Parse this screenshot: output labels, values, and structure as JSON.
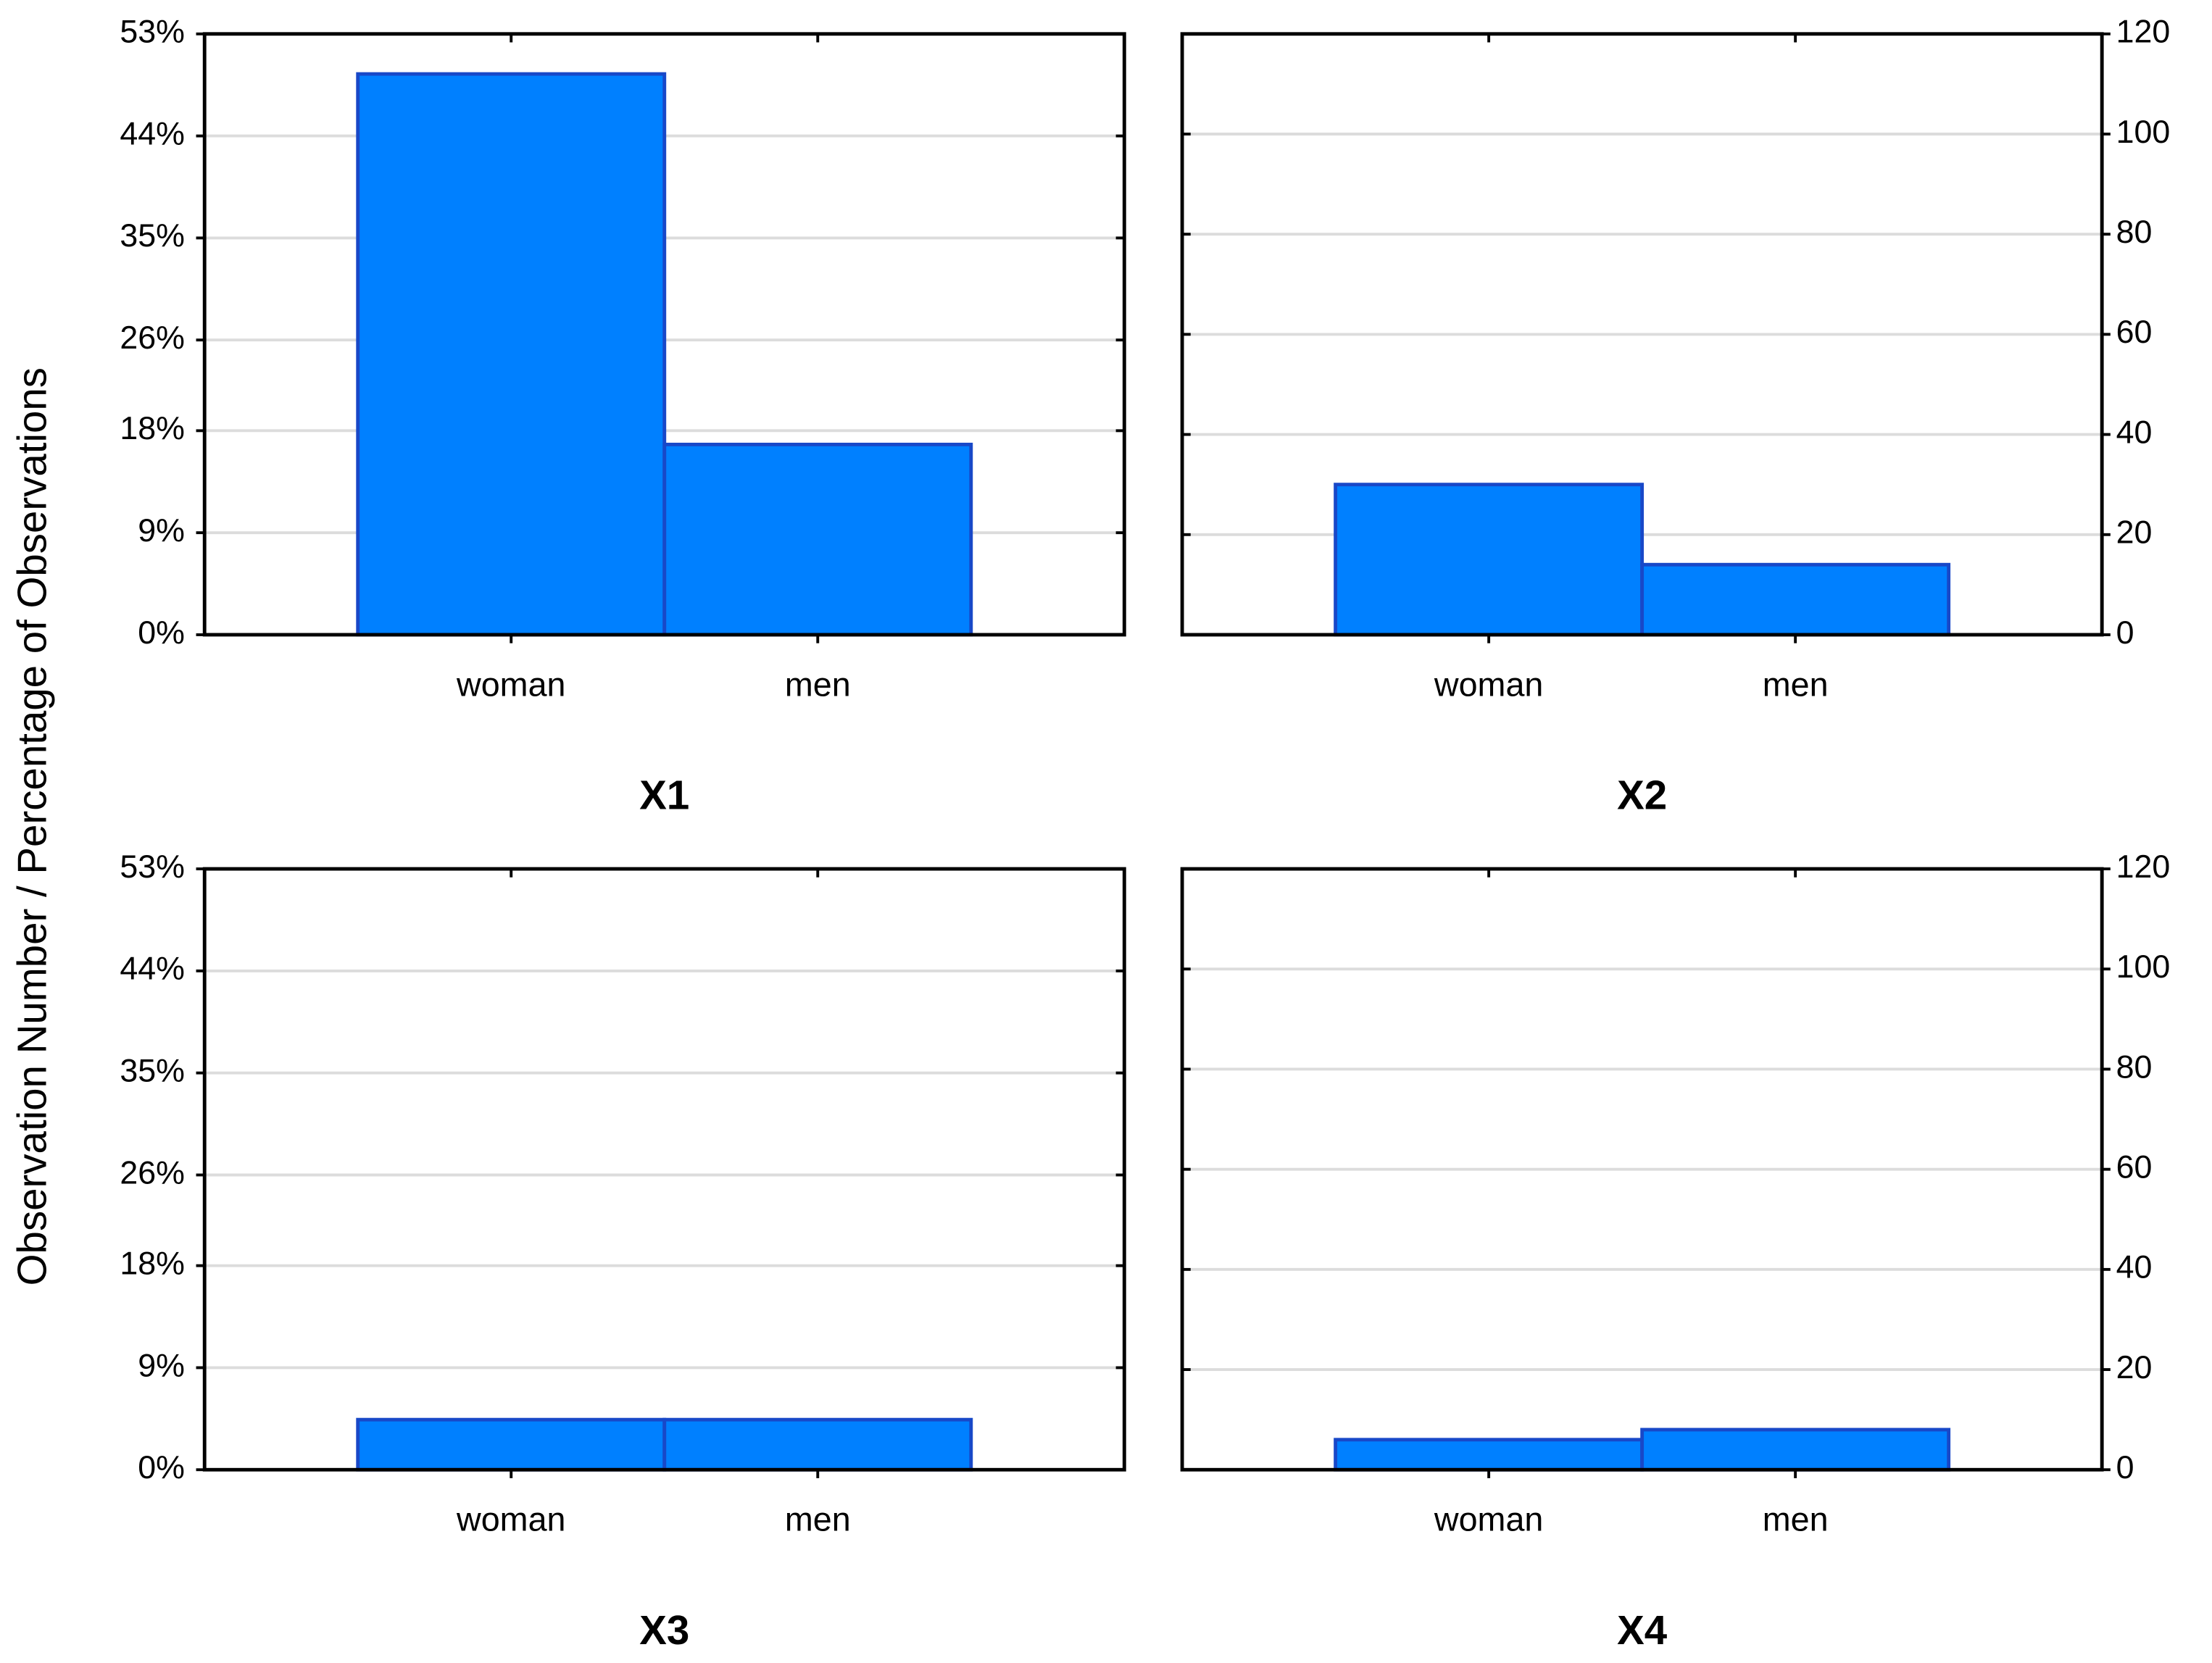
{
  "chart_data": [
    {
      "type": "bar",
      "title": "X1",
      "ylabel": "Observation Number / Percentage of Observations",
      "categories": [
        "woman",
        "men"
      ],
      "series": [
        {
          "values": [
            112,
            38
          ],
          "color": "#0080ff",
          "axis": "y2"
        }
      ],
      "ylim": [
        0,
        53
      ],
      "yticks": [
        {
          "value": 0,
          "label": "0%"
        },
        {
          "value": 9,
          "label": "9%"
        },
        {
          "value": 18,
          "label": "18%"
        },
        {
          "value": 26,
          "label": "26%"
        },
        {
          "value": 35,
          "label": "35%"
        },
        {
          "value": 44,
          "label": "44%"
        },
        {
          "value": 53,
          "label": "53%"
        }
      ],
      "y2lim": [
        0,
        120
      ],
      "grid": true
    },
    {
      "type": "bar",
      "title": "X2",
      "categories": [
        "woman",
        "men"
      ],
      "series": [
        {
          "values": [
            30,
            14
          ],
          "color": "#0080ff"
        }
      ],
      "ylim": [
        0,
        120
      ],
      "yticks": [
        0,
        20,
        40,
        60,
        80,
        100,
        120
      ],
      "y_side": "right",
      "grid": true
    },
    {
      "type": "bar",
      "title": "X3",
      "categories": [
        "woman",
        "men"
      ],
      "series": [
        {
          "values": [
            10,
            10
          ],
          "color": "#0080ff",
          "axis": "y2"
        }
      ],
      "ylim": [
        0,
        53
      ],
      "yticks": [
        {
          "value": 0,
          "label": "0%"
        },
        {
          "value": 9,
          "label": "9%"
        },
        {
          "value": 18,
          "label": "18%"
        },
        {
          "value": 26,
          "label": "26%"
        },
        {
          "value": 35,
          "label": "35%"
        },
        {
          "value": 44,
          "label": "44%"
        },
        {
          "value": 53,
          "label": "53%"
        }
      ],
      "y2lim": [
        0,
        120
      ],
      "grid": true
    },
    {
      "type": "bar",
      "title": "X4",
      "categories": [
        "woman",
        "men"
      ],
      "series": [
        {
          "values": [
            6,
            8
          ],
          "color": "#0080ff"
        }
      ],
      "ylim": [
        0,
        120
      ],
      "yticks": [
        0,
        20,
        40,
        60,
        80,
        100,
        120
      ],
      "y_side": "right",
      "grid": true
    }
  ]
}
